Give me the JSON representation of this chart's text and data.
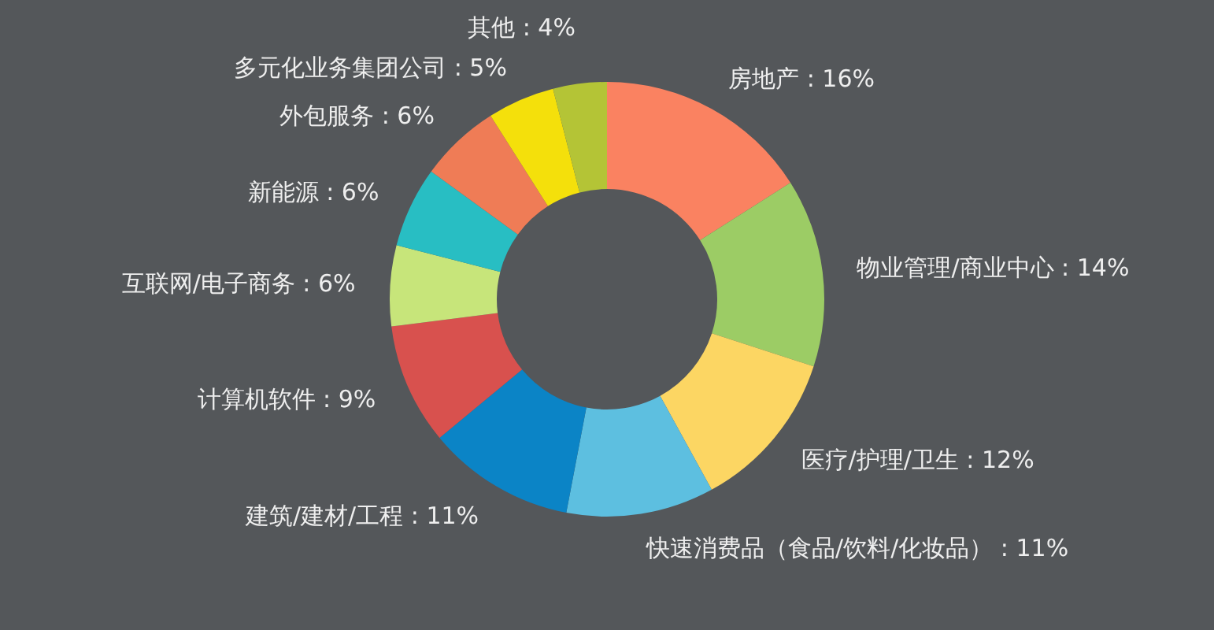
{
  "chart_data": {
    "type": "donut",
    "categories": [
      "房地产",
      "物业管理/商业中心",
      "医疗/护理/卫生",
      "快速消费品（食品/饮料/化妆品）",
      "建筑/建材/工程",
      "计算机软件",
      "互联网/电子商务",
      "新能源",
      "外包服务",
      "多元化业务集团公司",
      "其他"
    ],
    "values": [
      16,
      14,
      12,
      11,
      11,
      9,
      6,
      6,
      6,
      5,
      4
    ],
    "value_labels": [
      "16%",
      "14%",
      "12%",
      "11%",
      "11%",
      "9%",
      "6%",
      "6%",
      "6%",
      "5%",
      "4%"
    ],
    "colors": [
      "#fa8261",
      "#9ccc65",
      "#fcd663",
      "#5dbfe0",
      "#0b84c6",
      "#d8514e",
      "#c7e57a",
      "#28bec3",
      "#ef7c56",
      "#f4e00b",
      "#b4c436"
    ]
  }
}
